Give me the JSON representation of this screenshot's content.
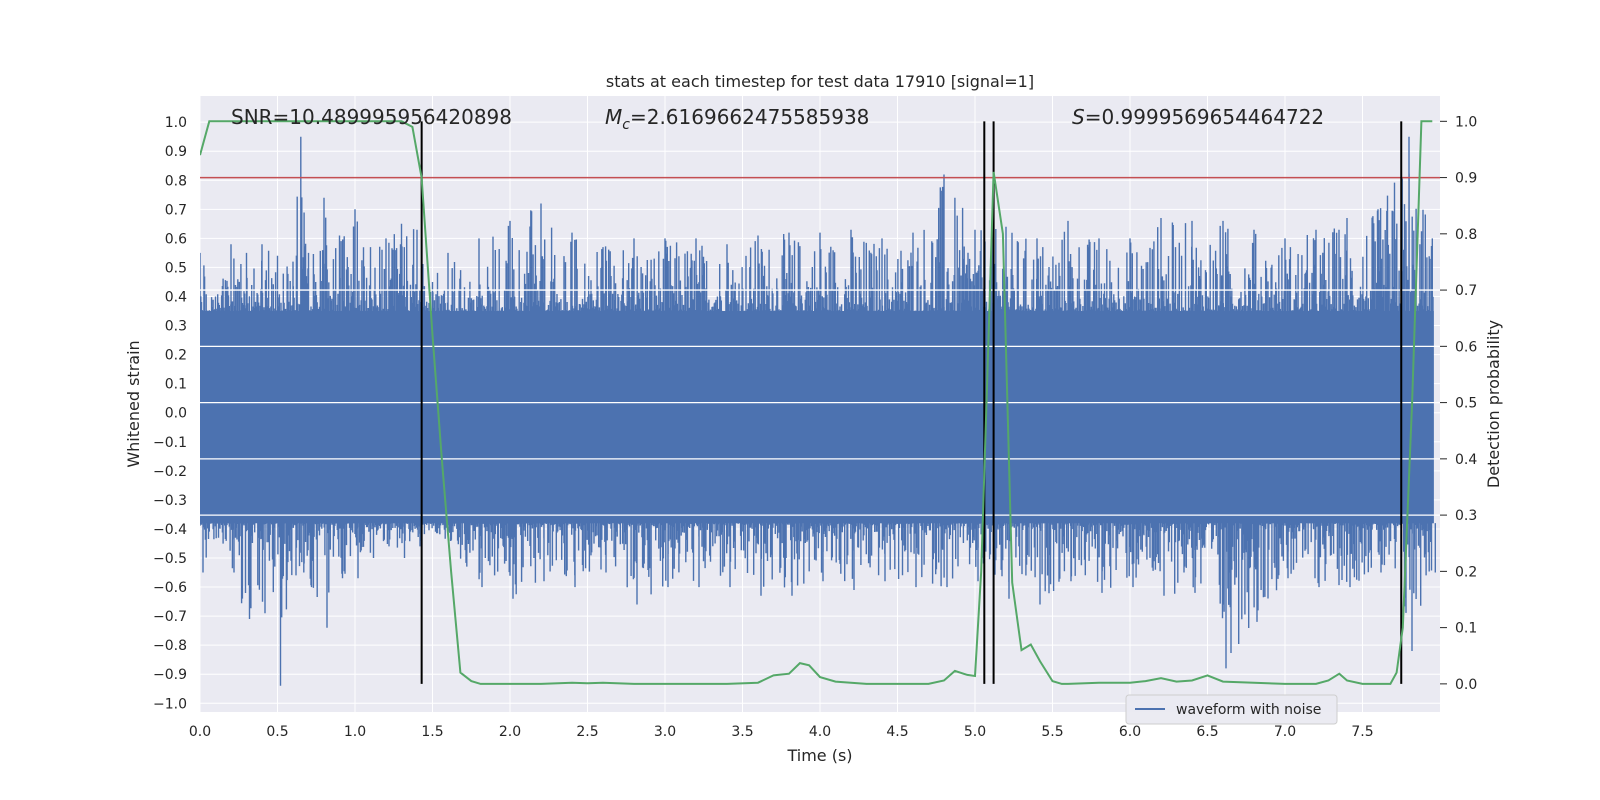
{
  "chart_data": {
    "type": "line",
    "title": "stats at each timestep for test data 17910 [signal=1]",
    "xlabel": "Time (s)",
    "ylabel_left": "Whitened strain",
    "ylabel_right": "Detection probability",
    "xlim": [
      0.0,
      8.0
    ],
    "ylim_left": [
      -1.03,
      1.09
    ],
    "ylim_right": [
      -0.05,
      1.045
    ],
    "x_ticks": [
      0.0,
      0.5,
      1.0,
      1.5,
      2.0,
      2.5,
      3.0,
      3.5,
      4.0,
      4.5,
      5.0,
      5.5,
      6.0,
      6.5,
      7.0,
      7.5
    ],
    "x_tick_labels": [
      "0.0",
      "0.5",
      "1.0",
      "1.5",
      "2.0",
      "2.5",
      "3.0",
      "3.5",
      "4.0",
      "4.5",
      "5.0",
      "5.5",
      "6.0",
      "6.5",
      "7.0",
      "7.5"
    ],
    "y_left_ticks": [
      1.0,
      0.9,
      0.8,
      0.7,
      0.6,
      0.5,
      0.4,
      0.3,
      0.2,
      0.1,
      0.0,
      -0.1,
      -0.2,
      -0.3,
      -0.4,
      -0.5,
      -0.6,
      -0.7,
      -0.8,
      -0.9,
      -1.0
    ],
    "y_left_tick_labels": [
      "1.0",
      "0.9",
      "0.8",
      "0.7",
      "0.6",
      "0.5",
      "0.4",
      "0.3",
      "0.2",
      "0.1",
      "0.0",
      "−0.1",
      "−0.2",
      "−0.3",
      "−0.4",
      "−0.5",
      "−0.6",
      "−0.7",
      "−0.8",
      "−0.9",
      "−1.0"
    ],
    "y_right_ticks": [
      1.0,
      0.9,
      0.8,
      0.7,
      0.6,
      0.5,
      0.4,
      0.3,
      0.2,
      0.1,
      0.0
    ],
    "y_right_tick_labels": [
      "1.0",
      "0.9",
      "0.8",
      "0.7",
      "0.6",
      "0.5",
      "0.4",
      "0.3",
      "0.2",
      "0.1",
      "0.0"
    ],
    "annotations": {
      "snr": "SNR=10.489995956420898",
      "mc_symbol": "M",
      "mc_sub": "c",
      "mc_value": "=2.6169662475585938",
      "s_symbol": "S",
      "s_value": "=0.9999569654464722"
    },
    "threshold": {
      "value": 0.9,
      "axis": "right",
      "color": "#c44e52"
    },
    "vertical_markers": [
      1.43,
      5.06,
      5.12,
      7.75
    ],
    "series": [
      {
        "name": "waveform with noise",
        "axis": "left",
        "color": "#4c72b0",
        "kind": "noise",
        "envelope_x": [
          0.0,
          0.1,
          0.2,
          0.3,
          0.4,
          0.5,
          0.6,
          0.65,
          0.7,
          0.8,
          0.9,
          1.0,
          1.1,
          1.2,
          1.3,
          1.4,
          1.5,
          1.6,
          1.8,
          2.0,
          2.2,
          2.4,
          2.6,
          2.8,
          3.0,
          3.2,
          3.4,
          3.6,
          3.8,
          4.0,
          4.2,
          4.4,
          4.6,
          4.8,
          5.0,
          5.2,
          5.4,
          5.6,
          5.8,
          6.0,
          6.2,
          6.4,
          6.6,
          6.8,
          7.0,
          7.2,
          7.4,
          7.6,
          7.8,
          7.95
        ],
        "envelope_upper": [
          0.55,
          0.4,
          0.58,
          0.55,
          0.58,
          0.54,
          0.52,
          0.95,
          0.55,
          0.74,
          0.61,
          0.7,
          0.57,
          0.6,
          0.65,
          0.63,
          0.45,
          0.55,
          0.6,
          0.66,
          0.72,
          0.62,
          0.57,
          0.6,
          0.6,
          0.6,
          0.58,
          0.61,
          0.62,
          0.62,
          0.63,
          0.6,
          0.62,
          0.82,
          0.63,
          0.64,
          0.6,
          0.66,
          0.6,
          0.6,
          0.67,
          0.66,
          0.66,
          0.63,
          0.6,
          0.63,
          0.67,
          0.7,
          0.95,
          0.6
        ],
        "envelope_lower": [
          -0.55,
          -0.43,
          -0.55,
          -0.71,
          -0.69,
          -0.94,
          -0.56,
          -0.55,
          -0.6,
          -0.74,
          -0.57,
          -0.57,
          -0.5,
          -0.46,
          -0.5,
          -0.46,
          -0.41,
          -0.44,
          -0.6,
          -0.64,
          -0.58,
          -0.6,
          -0.55,
          -0.66,
          -0.6,
          -0.6,
          -0.6,
          -0.63,
          -0.63,
          -0.58,
          -0.61,
          -0.58,
          -0.6,
          -0.6,
          -0.58,
          -0.64,
          -0.66,
          -0.58,
          -0.62,
          -0.6,
          -0.63,
          -0.62,
          -0.88,
          -0.72,
          -0.57,
          -0.6,
          -0.6,
          -0.55,
          -0.82,
          -0.55
        ],
        "body_upper": 0.35,
        "body_lower": -0.38
      },
      {
        "name": "detection probability",
        "axis": "right",
        "color": "#55a868",
        "x": [
          0.0,
          0.06,
          0.12,
          1.1,
          1.2,
          1.3,
          1.37,
          1.43,
          1.5,
          1.56,
          1.62,
          1.68,
          1.75,
          1.81,
          2.0,
          2.2,
          2.4,
          2.5,
          2.6,
          2.8,
          3.0,
          3.2,
          3.4,
          3.6,
          3.7,
          3.8,
          3.87,
          3.93,
          4.0,
          4.1,
          4.3,
          4.5,
          4.7,
          4.8,
          4.87,
          4.95,
          5.0,
          5.04,
          5.08,
          5.12,
          5.18,
          5.24,
          5.3,
          5.36,
          5.42,
          5.5,
          5.56,
          5.6,
          5.8,
          6.0,
          6.1,
          6.2,
          6.3,
          6.4,
          6.5,
          6.6,
          6.8,
          7.0,
          7.2,
          7.28,
          7.35,
          7.4,
          7.5,
          7.6,
          7.68,
          7.72,
          7.76,
          7.82,
          7.88,
          7.95
        ],
        "y": [
          0.94,
          1.0,
          1.0,
          1.0,
          1.0,
          1.0,
          0.99,
          0.9,
          0.62,
          0.4,
          0.2,
          0.02,
          0.005,
          0.0,
          0.0,
          0.0,
          0.002,
          0.001,
          0.002,
          0.0,
          0.0,
          0.0,
          0.0,
          0.002,
          0.015,
          0.018,
          0.037,
          0.033,
          0.012,
          0.004,
          0.0,
          0.0,
          0.0,
          0.006,
          0.023,
          0.016,
          0.014,
          0.2,
          0.55,
          0.91,
          0.8,
          0.18,
          0.06,
          0.07,
          0.04,
          0.005,
          0.0,
          0.0,
          0.002,
          0.002,
          0.005,
          0.01,
          0.004,
          0.006,
          0.015,
          0.004,
          0.002,
          0.0,
          0.0,
          0.006,
          0.018,
          0.006,
          0.0,
          0.0,
          0.0,
          0.02,
          0.1,
          0.5,
          1.0,
          1.0
        ]
      }
    ],
    "legend": {
      "placement": "bottom-right",
      "entries": [
        "waveform with noise"
      ]
    }
  }
}
